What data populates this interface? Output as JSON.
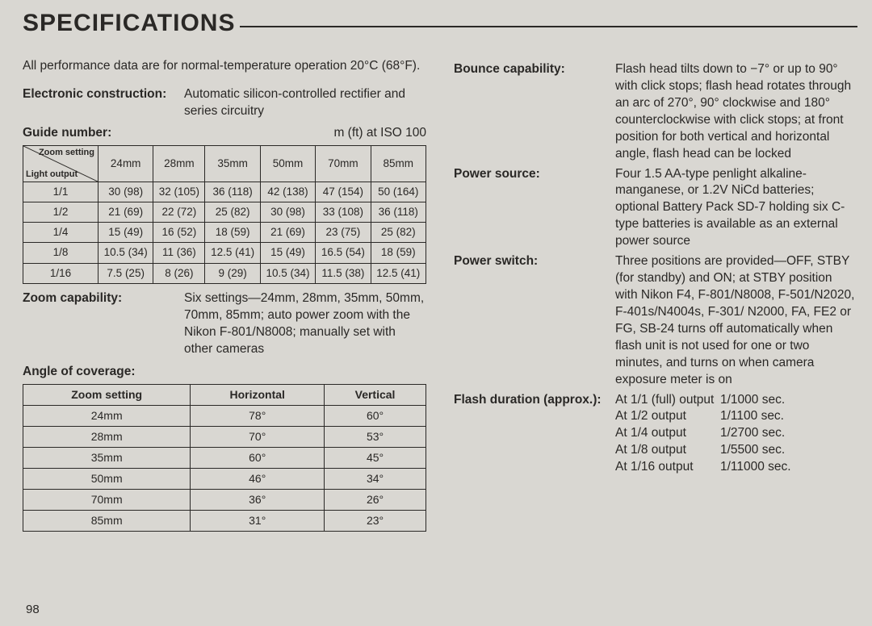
{
  "title": "SPECIFICATIONS",
  "intro": "All performance data are for normal-temperature operation 20°C (68°F).",
  "left": {
    "electronic": {
      "label": "Electronic construction:",
      "value": "Automatic silicon-controlled rectifier and series circuitry"
    },
    "guideNumber": {
      "label": "Guide number:",
      "unit": "m (ft) at ISO 100"
    },
    "gnTable": {
      "diagTop": "Zoom setting",
      "diagBot": "Light output",
      "cols": [
        "24mm",
        "28mm",
        "35mm",
        "50mm",
        "70mm",
        "85mm"
      ],
      "rows": [
        {
          "h": "1/1",
          "v": [
            "30 (98)",
            "32 (105)",
            "36 (118)",
            "42 (138)",
            "47 (154)",
            "50 (164)"
          ]
        },
        {
          "h": "1/2",
          "v": [
            "21 (69)",
            "22 (72)",
            "25 (82)",
            "30 (98)",
            "33 (108)",
            "36 (118)"
          ]
        },
        {
          "h": "1/4",
          "v": [
            "15 (49)",
            "16 (52)",
            "18 (59)",
            "21 (69)",
            "23 (75)",
            "25 (82)"
          ]
        },
        {
          "h": "1/8",
          "v": [
            "10.5 (34)",
            "11 (36)",
            "12.5 (41)",
            "15 (49)",
            "16.5 (54)",
            "18 (59)"
          ]
        },
        {
          "h": "1/16",
          "v": [
            "7.5 (25)",
            "8 (26)",
            "9 (29)",
            "10.5 (34)",
            "11.5 (38)",
            "12.5 (41)"
          ]
        }
      ]
    },
    "zoom": {
      "label": "Zoom capability:",
      "value": "Six settings—24mm, 28mm, 35mm, 50mm, 70mm, 85mm; auto power zoom with the Nikon F-801/N8008; manually set with other cameras"
    },
    "angle": {
      "label": "Angle of coverage:"
    },
    "angTable": {
      "head": [
        "Zoom setting",
        "Horizontal",
        "Vertical"
      ],
      "rows": [
        [
          "24mm",
          "78°",
          "60°"
        ],
        [
          "28mm",
          "70°",
          "53°"
        ],
        [
          "35mm",
          "60°",
          "45°"
        ],
        [
          "50mm",
          "46°",
          "34°"
        ],
        [
          "70mm",
          "36°",
          "26°"
        ],
        [
          "85mm",
          "31°",
          "23°"
        ]
      ]
    }
  },
  "right": {
    "bounce": {
      "label": "Bounce capability:",
      "value": "Flash head tilts down to −7° or up to 90° with click stops; flash head rotates through an arc of 270°, 90° clockwise and 180° counterclock­wise with click stops; at front posi­tion for both vertical and horizontal angle, flash head can be locked"
    },
    "power": {
      "label": "Power source:",
      "value": "Four 1.5 AA-type penlight alkaline-manganese, or 1.2V NiCd batteries; optional Battery Pack SD-7 holding six C-type batteries is available as an external power source"
    },
    "switch": {
      "label": "Power switch:",
      "value": "Three positions are provided—OFF, STBY (for standby) and ON; at STBY position with Nikon F4, F-801/N8008, F-501/N2020, F-401s/N4004s, F-301/ N2000, FA, FE2 or FG, SB-24 turns off automatically when flash unit is not used for one or two minutes, and turns on when camera exposure meter is on"
    },
    "flashDuration": {
      "label": "Flash duration (approx.):",
      "rows": [
        [
          "At 1/1 (full) output",
          "1/1000 sec."
        ],
        [
          "At 1/2 output",
          "1/1100 sec."
        ],
        [
          "At 1/4 output",
          "1/2700 sec."
        ],
        [
          "At 1/8 output",
          "1/5500 sec."
        ],
        [
          "At 1/16 output",
          "1/11000 sec."
        ]
      ]
    }
  },
  "pageNumber": "98",
  "style": {
    "bg": "#d9d7d2",
    "fg": "#2a2826",
    "titleFont": 30,
    "bodyFont": 15.5,
    "tableFont": 14,
    "gnFont": 13.5
  }
}
